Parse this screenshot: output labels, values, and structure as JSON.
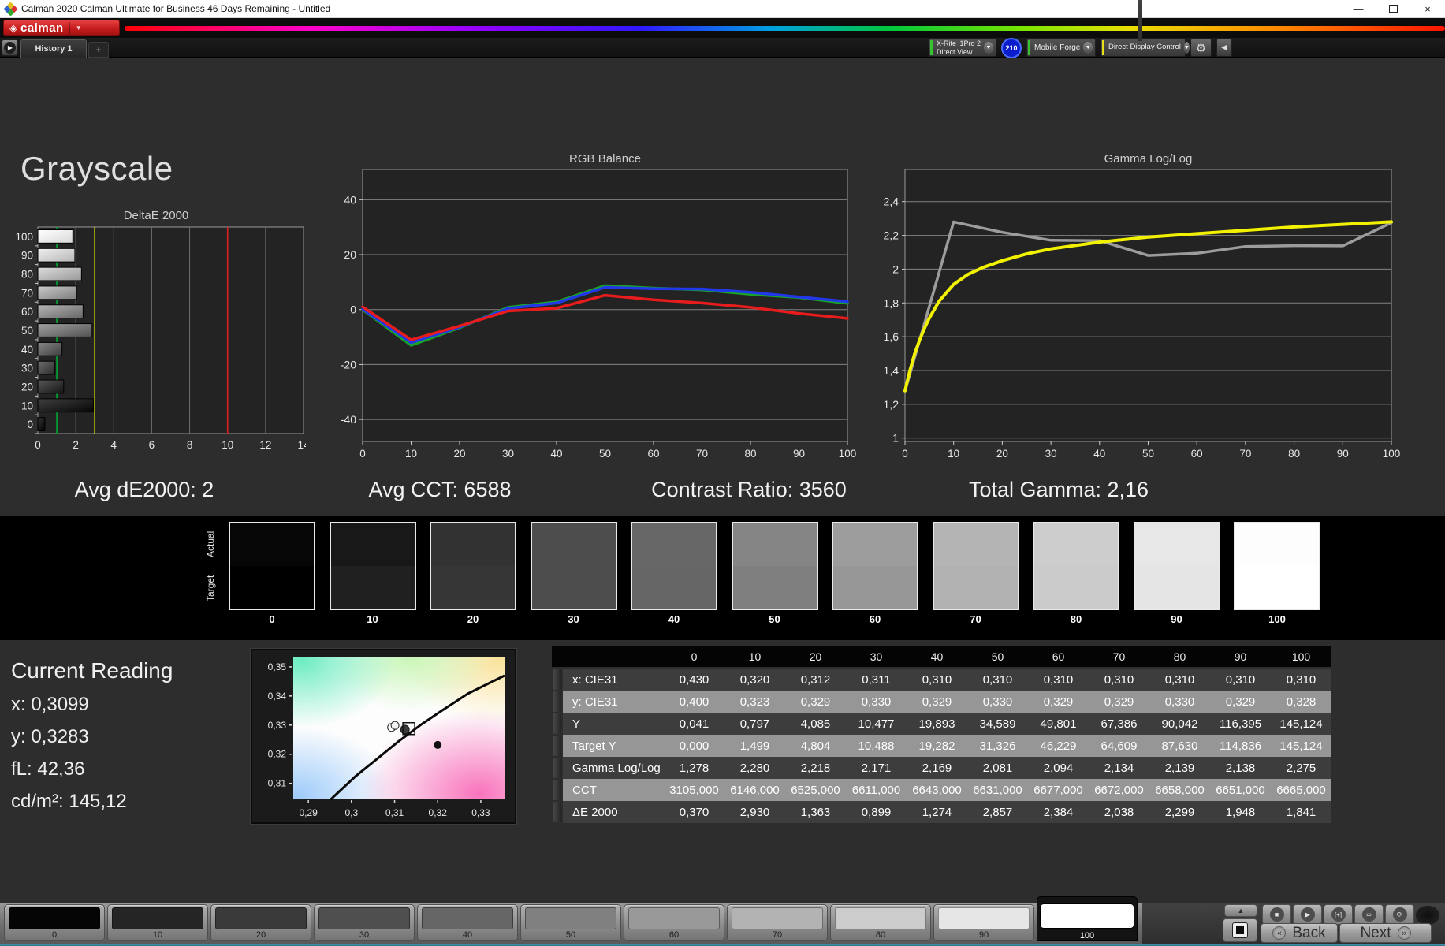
{
  "window": {
    "title": "Calman 2020 Calman Ultimate for Business 46 Days Remaining - Untitled",
    "minimize": "—",
    "close": "×"
  },
  "logo": {
    "glyph": "◈",
    "text": "calman",
    "caret": "▼"
  },
  "tab_bar": {
    "play": "▶",
    "history_tab": "History 1",
    "add_tab": "+"
  },
  "toolbar": {
    "meter": {
      "line1": "X-Rite i1Pro 2",
      "line2": "Direct View",
      "accent": "#35c42e",
      "caret": "▼"
    },
    "badge": "210",
    "source": {
      "label": "Mobile Forge",
      "accent": "#35c42e",
      "caret": "▼"
    },
    "display": {
      "label": "Direct Display Control",
      "accent": "#e8e11a",
      "caret": "▼"
    },
    "gear": "⚙",
    "collapse": "◀"
  },
  "page_title": "Grayscale",
  "stats": {
    "avg_de": "Avg dE2000: 2",
    "avg_cct": "Avg CCT: 6588",
    "contrast": "Contrast Ratio: 3560",
    "total_gamma": "Total Gamma: 2,16"
  },
  "chart_data": [
    {
      "type": "bar",
      "title": "DeltaE 2000",
      "orientation": "horizontal",
      "categories": [
        "0",
        "10",
        "20",
        "30",
        "40",
        "50",
        "60",
        "70",
        "80",
        "90",
        "100"
      ],
      "values": [
        0.37,
        2.93,
        1.363,
        0.899,
        1.274,
        2.857,
        2.384,
        2.038,
        2.299,
        1.948,
        1.841
      ],
      "xlim": [
        0,
        14
      ],
      "x_ticks": [
        0,
        2,
        4,
        6,
        8,
        10,
        12,
        14
      ],
      "reference_lines": [
        {
          "value": 1,
          "color": "#00a833"
        },
        {
          "value": 3,
          "color": "#e6e600"
        },
        {
          "value": 10,
          "color": "#dd2222"
        }
      ],
      "bar_fills": [
        [
          "#383838",
          "#000000"
        ],
        [
          "#404040",
          "#050505"
        ],
        [
          "#585858",
          "#141414"
        ],
        [
          "#6e6e6e",
          "#2a2a2a"
        ],
        [
          "#888888",
          "#3e3e3e"
        ],
        [
          "#a0a0a0",
          "#525252"
        ],
        [
          "#b6b6b6",
          "#666666"
        ],
        [
          "#cacaca",
          "#7e7e7e"
        ],
        [
          "#dcdcdc",
          "#989898"
        ],
        [
          "#efefef",
          "#b6b6b6"
        ],
        [
          "#ffffff",
          "#d8d8d8"
        ]
      ]
    },
    {
      "type": "line",
      "title": "RGB Balance",
      "x": [
        0,
        10,
        20,
        30,
        40,
        50,
        60,
        70,
        80,
        90,
        100
      ],
      "ylim": [
        -48,
        51
      ],
      "y_ticks": [
        {
          "v": 40,
          "l": "40"
        },
        {
          "v": 20,
          "l": "20"
        },
        {
          "v": 0,
          "l": "0"
        },
        {
          "v": -20,
          "l": "-20"
        },
        {
          "v": -40,
          "l": "-40"
        }
      ],
      "x_ticks": [
        0,
        10,
        20,
        30,
        40,
        50,
        60,
        70,
        80,
        90,
        100
      ],
      "series": [
        {
          "name": "Green",
          "color": "#18a428",
          "width": 3.5,
          "values": [
            0,
            -13,
            -6.6,
            0.8,
            2.8,
            8.7,
            7.8,
            7.2,
            5.6,
            4.4,
            2.3
          ]
        },
        {
          "name": "Blue",
          "color": "#2238e8",
          "width": 3.5,
          "values": [
            0.2,
            -12,
            -6.4,
            0.4,
            2.4,
            8.1,
            7.6,
            7.5,
            6.3,
            4.6,
            2.9
          ]
        },
        {
          "name": "Red",
          "color": "#e81c1c",
          "width": 3.5,
          "values": [
            1,
            -11,
            -6,
            -0.5,
            0.5,
            5.2,
            3.6,
            2.4,
            0.8,
            -1.4,
            -3.2
          ]
        }
      ]
    },
    {
      "type": "line",
      "title": "Gamma Log/Log",
      "x": [
        0,
        10,
        20,
        30,
        40,
        50,
        60,
        70,
        80,
        90,
        100
      ],
      "ylim": [
        0.98,
        2.59
      ],
      "y_ticks": [
        {
          "v": 2.4,
          "l": "2,4"
        },
        {
          "v": 2.2,
          "l": "2,2"
        },
        {
          "v": 2.0,
          "l": "2"
        },
        {
          "v": 1.8,
          "l": "1,8"
        },
        {
          "v": 1.6,
          "l": "1,6"
        },
        {
          "v": 1.4,
          "l": "1,4"
        },
        {
          "v": 1.2,
          "l": "1,2"
        },
        {
          "v": 1.0,
          "l": "1"
        }
      ],
      "x_ticks": [
        0,
        10,
        20,
        30,
        40,
        50,
        60,
        70,
        80,
        90,
        100
      ],
      "series": [
        {
          "name": "Measured Gamma",
          "color": "#9c9c9c",
          "width": 3.5,
          "values": [
            1.278,
            2.28,
            2.218,
            2.171,
            2.169,
            2.081,
            2.094,
            2.134,
            2.139,
            2.138,
            2.275
          ]
        },
        {
          "name": "Target Gamma",
          "color": "#f2f200",
          "width": 4,
          "points": [
            [
              0,
              1.28
            ],
            [
              1,
              1.4
            ],
            [
              2,
              1.5
            ],
            [
              3,
              1.58
            ],
            [
              4,
              1.65
            ],
            [
              5,
              1.71
            ],
            [
              7,
              1.81
            ],
            [
              10,
              1.91
            ],
            [
              13,
              1.97
            ],
            [
              16,
              2.01
            ],
            [
              20,
              2.05
            ],
            [
              25,
              2.09
            ],
            [
              30,
              2.12
            ],
            [
              40,
              2.16
            ],
            [
              50,
              2.19
            ],
            [
              60,
              2.21
            ],
            [
              70,
              2.23
            ],
            [
              80,
              2.25
            ],
            [
              90,
              2.265
            ],
            [
              100,
              2.28
            ]
          ]
        }
      ]
    }
  ],
  "swatch_strip": {
    "row_labels": [
      "Actual",
      "Target"
    ],
    "levels": [
      "0",
      "10",
      "20",
      "30",
      "40",
      "50",
      "60",
      "70",
      "80",
      "90",
      "100"
    ],
    "actual_colors": [
      "#060606",
      "#181818",
      "#323232",
      "#4d4d4d",
      "#676767",
      "#858585",
      "#9d9d9d",
      "#b4b4b4",
      "#cdcdcd",
      "#e7e7e7",
      "#fdfdfd"
    ],
    "target_colors": [
      "#000000",
      "#202020",
      "#363636",
      "#4d4d4d",
      "#666666",
      "#7f7f7f",
      "#979797",
      "#b1b1b1",
      "#cbcbcb",
      "#e5e5e5",
      "#ffffff"
    ]
  },
  "current_reading": {
    "title": "Current Reading",
    "x": "x: 0,3099",
    "y": "y: 0,3283",
    "fl": "fL: 42,36",
    "cdm2": "cd/m²: 145,12"
  },
  "cie_chart": {
    "xlim": [
      0.2865,
      0.3355
    ],
    "ylim": [
      0.3045,
      0.3535
    ],
    "x_ticks": [
      {
        "v": 0.29,
        "l": "0,29"
      },
      {
        "v": 0.3,
        "l": "0,3"
      },
      {
        "v": 0.31,
        "l": "0,31"
      },
      {
        "v": 0.32,
        "l": "0,32"
      },
      {
        "v": 0.33,
        "l": "0,33"
      }
    ],
    "y_ticks": [
      {
        "v": 0.35,
        "l": "0,35"
      },
      {
        "v": 0.34,
        "l": "0,34"
      },
      {
        "v": 0.33,
        "l": "0,33"
      },
      {
        "v": 0.32,
        "l": "0,32"
      },
      {
        "v": 0.31,
        "l": "0,31"
      }
    ],
    "locus_curve": [
      [
        0.2952,
        0.3045
      ],
      [
        0.301,
        0.3125
      ],
      [
        0.306,
        0.3185
      ],
      [
        0.311,
        0.3245
      ],
      [
        0.316,
        0.33
      ],
      [
        0.321,
        0.335
      ],
      [
        0.327,
        0.3408
      ],
      [
        0.3355,
        0.347
      ]
    ],
    "markers": [
      {
        "type": "circle",
        "x": 0.3093,
        "y": 0.3292,
        "r": 5,
        "fill": "#ffffff",
        "stroke": "#222222"
      },
      {
        "type": "circle",
        "x": 0.3101,
        "y": 0.3299,
        "r": 5,
        "fill": "#f2f2f2",
        "stroke": "#222222"
      },
      {
        "type": "circle",
        "x": 0.3124,
        "y": 0.3285,
        "r": 5.5,
        "fill": "#3a3a3a",
        "stroke": "#1a1a1a"
      },
      {
        "type": "rect",
        "x": 0.3133,
        "y": 0.3288,
        "size": 15,
        "stroke": "#111111"
      },
      {
        "type": "circle",
        "x": 0.32,
        "y": 0.3232,
        "r": 4.5,
        "fill": "#111111",
        "stroke": "#111111"
      }
    ]
  },
  "table": {
    "columns": [
      "0",
      "10",
      "20",
      "30",
      "40",
      "50",
      "60",
      "70",
      "80",
      "90",
      "100"
    ],
    "rows": [
      {
        "label": "x: CIE31",
        "values": [
          "0,430",
          "0,320",
          "0,312",
          "0,311",
          "0,310",
          "0,310",
          "0,310",
          "0,310",
          "0,310",
          "0,310",
          "0,310"
        ]
      },
      {
        "label": "y: CIE31",
        "values": [
          "0,400",
          "0,323",
          "0,329",
          "0,330",
          "0,329",
          "0,330",
          "0,329",
          "0,329",
          "0,330",
          "0,329",
          "0,328"
        ]
      },
      {
        "label": "Y",
        "values": [
          "0,041",
          "0,797",
          "4,085",
          "10,477",
          "19,893",
          "34,589",
          "49,801",
          "67,386",
          "90,042",
          "116,395",
          "145,124"
        ]
      },
      {
        "label": "Target Y",
        "values": [
          "0,000",
          "1,499",
          "4,804",
          "10,488",
          "19,282",
          "31,326",
          "46,229",
          "64,609",
          "87,630",
          "114,836",
          "145,124"
        ]
      },
      {
        "label": "Gamma Log/Log",
        "values": [
          "1,278",
          "2,280",
          "2,218",
          "2,171",
          "2,169",
          "2,081",
          "2,094",
          "2,134",
          "2,139",
          "2,138",
          "2,275"
        ]
      },
      {
        "label": "CCT",
        "values": [
          "3105,000",
          "6146,000",
          "6525,000",
          "6611,000",
          "6643,000",
          "6631,000",
          "6677,000",
          "6672,000",
          "6658,000",
          "6651,000",
          "6665,000"
        ]
      },
      {
        "label": "ΔE 2000",
        "values": [
          "0,370",
          "2,930",
          "1,363",
          "0,899",
          "1,274",
          "2,857",
          "2,384",
          "2,038",
          "2,299",
          "1,948",
          "1,841"
        ]
      }
    ]
  },
  "bottom_bar": {
    "patches": [
      {
        "label": "0",
        "color": "#050505",
        "selected": false
      },
      {
        "label": "10",
        "color": "#252525",
        "selected": false
      },
      {
        "label": "20",
        "color": "#3a3a3a",
        "selected": false
      },
      {
        "label": "30",
        "color": "#4f4f4f",
        "selected": false
      },
      {
        "label": "40",
        "color": "#666666",
        "selected": false
      },
      {
        "label": "50",
        "color": "#808080",
        "selected": false
      },
      {
        "label": "60",
        "color": "#999999",
        "selected": false
      },
      {
        "label": "70",
        "color": "#b3b3b3",
        "selected": false
      },
      {
        "label": "80",
        "color": "#cccccc",
        "selected": false
      },
      {
        "label": "90",
        "color": "#e6e6e6",
        "selected": false
      },
      {
        "label": "100",
        "color": "#ffffff",
        "selected": true
      }
    ],
    "up_arrow": "▲",
    "transport_icons": [
      {
        "name": "stop-icon",
        "glyph": "■"
      },
      {
        "name": "play-icon",
        "glyph": "▶"
      },
      {
        "name": "interval-icon",
        "glyph": "[+]"
      },
      {
        "name": "infinity-icon",
        "glyph": "∞"
      },
      {
        "name": "loop-icon",
        "glyph": "⟳"
      }
    ],
    "back_chevron": "«",
    "back_label": "Back",
    "next_label": "Next",
    "next_chevron": "»"
  }
}
